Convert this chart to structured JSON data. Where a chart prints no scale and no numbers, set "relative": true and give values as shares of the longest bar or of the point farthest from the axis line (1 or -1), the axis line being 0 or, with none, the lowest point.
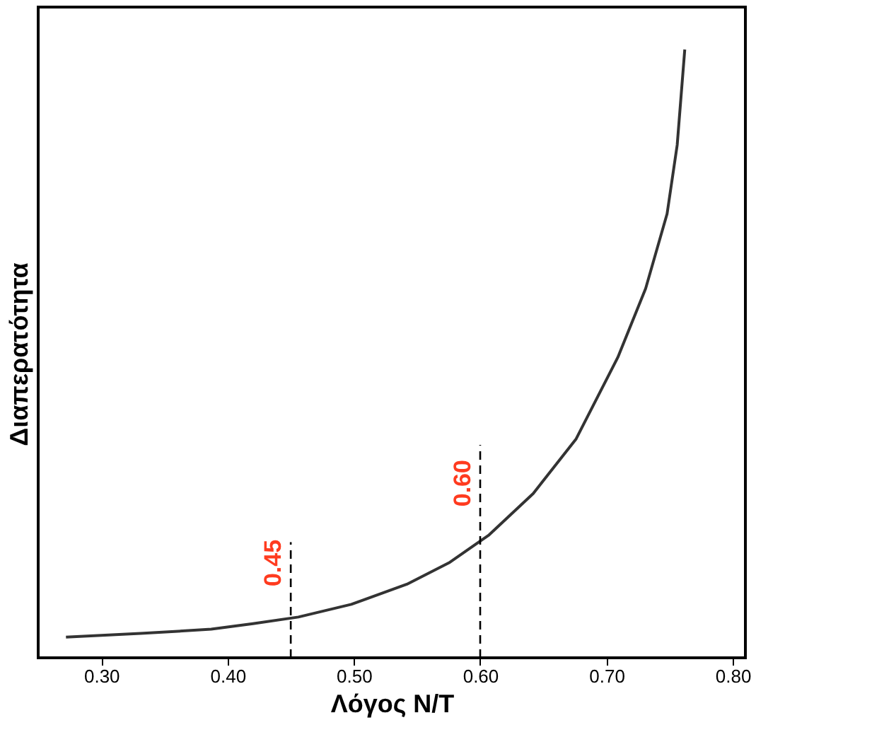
{
  "chart_data": {
    "type": "line",
    "relative": true,
    "xlabel": "Λόγος N/T",
    "ylabel": "Διαπερατότητα",
    "xlim": [
      0.25,
      0.81
    ],
    "xticks": [
      {
        "value": 0.3,
        "label": "0.30"
      },
      {
        "value": 0.4,
        "label": "0.40"
      },
      {
        "value": 0.5,
        "label": "0.50"
      },
      {
        "value": 0.6,
        "label": "0.60"
      },
      {
        "value": 0.7,
        "label": "0.70"
      },
      {
        "value": 0.8,
        "label": "0.80"
      }
    ],
    "grid": false,
    "series": [
      {
        "color": "#333333",
        "x": [
          0.272,
          0.331,
          0.387,
          0.42,
          0.456,
          0.498,
          0.542,
          0.576,
          0.607,
          0.642,
          0.676,
          0.709,
          0.731,
          0.748,
          0.756,
          0.762
        ],
        "values": [
          0.034,
          0.04,
          0.047,
          0.056,
          0.067,
          0.088,
          0.121,
          0.157,
          0.202,
          0.27,
          0.36,
          0.494,
          0.607,
          0.73,
          0.843,
          1.0
        ]
      }
    ],
    "ref_lines": [
      {
        "axis": "x",
        "value": 0.45,
        "label": "0.45",
        "color": "#000000",
        "line_style": "dashed"
      },
      {
        "axis": "x",
        "value": 0.6,
        "label": "0.60",
        "color": "#000000",
        "line_style": "dashed"
      }
    ]
  }
}
